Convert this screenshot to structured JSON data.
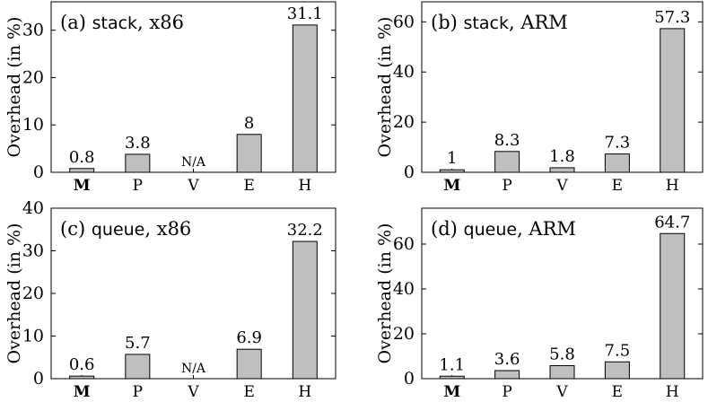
{
  "chart_data": [
    {
      "type": "bar",
      "title_prefix": "(a)",
      "title_keyword": "stack",
      "title_suffix": ", x86",
      "ylabel": "Overhead (in %)",
      "categories": [
        "M",
        "P",
        "V",
        "E",
        "H"
      ],
      "values": [
        0.8,
        3.8,
        null,
        8,
        31.1
      ],
      "value_labels": [
        "0.8",
        "3.8",
        "N/A",
        "8",
        "31.1"
      ],
      "ylim": [
        0,
        36
      ],
      "yticks": [
        0,
        10,
        20,
        30
      ],
      "bar_color": "#bfbfbf",
      "grid": false
    },
    {
      "type": "bar",
      "title_prefix": "(b)",
      "title_keyword": "stack",
      "title_suffix": ", ARM",
      "ylabel": "Overhead (in %)",
      "categories": [
        "M",
        "P",
        "V",
        "E",
        "H"
      ],
      "values": [
        1,
        8.3,
        1.8,
        7.3,
        57.3
      ],
      "value_labels": [
        "1",
        "8.3",
        "1.8",
        "7.3",
        "57.3"
      ],
      "ylim": [
        0,
        68
      ],
      "yticks": [
        0,
        20,
        40,
        60
      ],
      "bar_color": "#bfbfbf",
      "grid": false
    },
    {
      "type": "bar",
      "title_prefix": "(c)",
      "title_keyword": "queue",
      "title_suffix": ", x86",
      "ylabel": "Overhead (in %)",
      "categories": [
        "M",
        "P",
        "V",
        "E",
        "H"
      ],
      "values": [
        0.6,
        5.7,
        null,
        6.9,
        32.2
      ],
      "value_labels": [
        "0.6",
        "5.7",
        "N/A",
        "6.9",
        "32.2"
      ],
      "ylim": [
        0,
        40
      ],
      "yticks": [
        0,
        10,
        20,
        30,
        40
      ],
      "bar_color": "#bfbfbf",
      "grid": false
    },
    {
      "type": "bar",
      "title_prefix": "(d)",
      "title_keyword": "queue",
      "title_suffix": ", ARM",
      "ylabel": "Overhead (in %)",
      "categories": [
        "M",
        "P",
        "V",
        "E",
        "H"
      ],
      "values": [
        1.1,
        3.6,
        5.8,
        7.5,
        64.7
      ],
      "value_labels": [
        "1.1",
        "3.6",
        "5.8",
        "7.5",
        "64.7"
      ],
      "ylim": [
        0,
        76
      ],
      "yticks": [
        0,
        20,
        40,
        60
      ],
      "bar_color": "#bfbfbf",
      "grid": false
    }
  ]
}
